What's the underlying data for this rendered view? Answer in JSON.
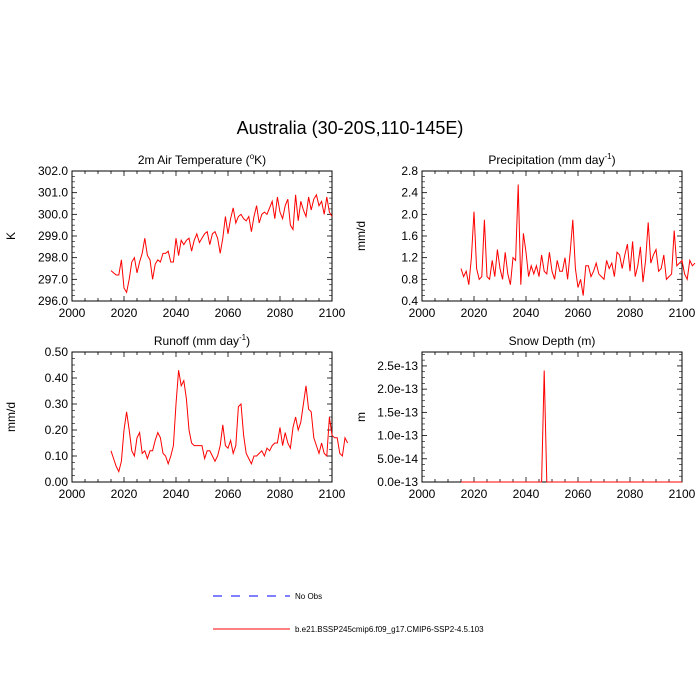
{
  "figure_title": "Australia (30-20S,110-145E)",
  "colors": {
    "model": "#ff0000",
    "obs": "#0000ff",
    "axis": "#000000"
  },
  "legend": [
    {
      "label": "No Obs",
      "style": "dashed",
      "color": "#0000ff"
    },
    {
      "label": "b.e21.BSSP245cmip6.f09_g17.CMIP6-SSP2-4.5.103",
      "style": "solid",
      "color": "#ff0000"
    }
  ],
  "chart_data": [
    {
      "type": "line",
      "title": "2m Air Temperature (",
      "title_sup": "o",
      "title_after": "K)",
      "ylabel": "K",
      "xlim": [
        2000,
        2100
      ],
      "ylim": [
        296.0,
        302.0
      ],
      "xticks": [
        2000,
        2020,
        2040,
        2060,
        2080,
        2100
      ],
      "xtick_labels": [
        "2000",
        "2020",
        "2040",
        "2060",
        "2080",
        "2100"
      ],
      "yticks": [
        296.0,
        297.0,
        298.0,
        299.0,
        300.0,
        301.0,
        302.0
      ],
      "ytick_labels": [
        "296.0",
        "297.0",
        "298.0",
        "299.0",
        "300.0",
        "301.0",
        "302.0"
      ],
      "x_start": 2015,
      "values": [
        297.4,
        297.3,
        297.2,
        297.2,
        297.9,
        296.6,
        296.4,
        297.0,
        297.8,
        298.0,
        297.3,
        297.8,
        298.2,
        298.9,
        298.1,
        297.9,
        297.0,
        297.7,
        297.9,
        297.8,
        298.2,
        298.2,
        298.3,
        297.8,
        297.8,
        298.9,
        298.1,
        298.8,
        298.6,
        298.8,
        298.9,
        298.3,
        298.8,
        299.1,
        298.7,
        298.9,
        299.1,
        299.2,
        298.6,
        299.1,
        299.2,
        298.9,
        298.2,
        298.9,
        299.9,
        299.1,
        299.8,
        300.3,
        299.6,
        299.9,
        300.0,
        299.8,
        299.7,
        299.9,
        299.2,
        299.9,
        300.4,
        299.6,
        300.0,
        300.1,
        300.0,
        300.3,
        300.6,
        299.8,
        300.8,
        300.1,
        299.8,
        300.4,
        300.7,
        299.5,
        299.3,
        300.9,
        299.7,
        300.6,
        300.2,
        299.9,
        300.8,
        300.2,
        300.7,
        300.9,
        300.4,
        300.6,
        300.0,
        300.8,
        300.1,
        299.9
      ],
      "series_name": "b.e21.BSSP245cmip6.f09_g17.CMIP6-SSP2-4.5.103"
    },
    {
      "type": "line",
      "title": "Precipitation (mm day",
      "title_sup": "-1",
      "title_after": ")",
      "ylabel": "mm/d",
      "xlim": [
        2000,
        2100
      ],
      "ylim": [
        0.4,
        2.8
      ],
      "xticks": [
        2000,
        2020,
        2040,
        2060,
        2080,
        2100
      ],
      "xtick_labels": [
        "2000",
        "2020",
        "2040",
        "2060",
        "2080",
        "2100"
      ],
      "yticks": [
        0.4,
        0.8,
        1.2,
        1.6,
        2.0,
        2.4,
        2.8
      ],
      "ytick_labels": [
        "0.4",
        "0.8",
        "1.2",
        "1.6",
        "2.0",
        "2.4",
        "2.8"
      ],
      "x_start": 2015,
      "values": [
        1.0,
        0.85,
        0.95,
        0.7,
        1.2,
        2.05,
        1.0,
        0.8,
        0.85,
        1.9,
        0.85,
        0.8,
        1.15,
        0.85,
        1.35,
        1.0,
        0.8,
        1.3,
        0.9,
        0.7,
        1.2,
        1.15,
        2.55,
        0.7,
        1.65,
        1.3,
        0.85,
        1.05,
        0.9,
        1.05,
        0.85,
        1.25,
        0.95,
        0.9,
        1.3,
        0.95,
        0.8,
        1.15,
        0.95,
        0.95,
        1.2,
        0.8,
        1.3,
        1.9,
        1.0,
        0.65,
        0.8,
        0.5,
        1.05,
        1.05,
        0.85,
        0.95,
        1.1,
        0.9,
        0.85,
        0.8,
        1.15,
        1.0,
        1.1,
        0.85,
        1.3,
        1.25,
        1.0,
        1.25,
        1.45,
        0.95,
        1.5,
        0.85,
        1.05,
        1.4,
        0.75,
        1.15,
        1.85,
        1.1,
        1.25,
        1.35,
        0.95,
        1.0,
        1.25,
        0.8,
        0.85,
        0.9,
        1.7,
        1.05,
        1.1,
        1.15,
        0.9,
        0.8,
        1.15,
        1.05,
        1.1
      ],
      "series_name": "b.e21.BSSP245cmip6.f09_g17.CMIP6-SSP2-4.5.103"
    },
    {
      "type": "line",
      "title": "Runoff (mm day",
      "title_sup": "-1",
      "title_after": ")",
      "ylabel": "mm/d",
      "xlim": [
        2000,
        2100
      ],
      "ylim": [
        0.0,
        0.5
      ],
      "xticks": [
        2000,
        2020,
        2040,
        2060,
        2080,
        2100
      ],
      "xtick_labels": [
        "2000",
        "2020",
        "2040",
        "2060",
        "2080",
        "2100"
      ],
      "yticks": [
        0.0,
        0.1,
        0.2,
        0.3,
        0.4,
        0.5
      ],
      "ytick_labels": [
        "0.00",
        "0.10",
        "0.20",
        "0.30",
        "0.40",
        "0.50"
      ],
      "x_start": 2015,
      "values": [
        0.12,
        0.09,
        0.06,
        0.04,
        0.08,
        0.2,
        0.27,
        0.2,
        0.12,
        0.1,
        0.17,
        0.19,
        0.11,
        0.12,
        0.09,
        0.12,
        0.12,
        0.16,
        0.19,
        0.17,
        0.11,
        0.1,
        0.07,
        0.1,
        0.14,
        0.3,
        0.43,
        0.37,
        0.39,
        0.32,
        0.2,
        0.15,
        0.14,
        0.14,
        0.14,
        0.14,
        0.09,
        0.12,
        0.12,
        0.1,
        0.08,
        0.1,
        0.14,
        0.22,
        0.14,
        0.13,
        0.16,
        0.11,
        0.14,
        0.29,
        0.3,
        0.18,
        0.11,
        0.09,
        0.07,
        0.1,
        0.1,
        0.11,
        0.12,
        0.1,
        0.13,
        0.12,
        0.14,
        0.15,
        0.15,
        0.21,
        0.14,
        0.19,
        0.15,
        0.13,
        0.21,
        0.25,
        0.2,
        0.23,
        0.3,
        0.37,
        0.28,
        0.27,
        0.17,
        0.14,
        0.11,
        0.15,
        0.11,
        0.1,
        0.25,
        0.18,
        0.17,
        0.17,
        0.11,
        0.1,
        0.17,
        0.15
      ],
      "series_name": "b.e21.BSSP245cmip6.f09_g17.CMIP6-SSP2-4.5.103"
    },
    {
      "type": "line",
      "title": "Snow Depth (m)",
      "title_sup": "",
      "title_after": "",
      "ylabel": "m",
      "xlim": [
        2000,
        2100
      ],
      "ylim": [
        0.0,
        2.8e-13
      ],
      "xticks": [
        2000,
        2020,
        2040,
        2060,
        2080,
        2100
      ],
      "xtick_labels": [
        "2000",
        "2020",
        "2040",
        "2060",
        "2080",
        "2100"
      ],
      "yticks": [
        0.0,
        5e-14,
        1e-13,
        1.5e-13,
        2e-13,
        2.5e-13
      ],
      "ytick_labels": [
        "0.0e-13",
        "5.0e-14",
        "1.0e-13",
        "1.5e-13",
        "2.0e-13",
        "2.5e-13"
      ],
      "x_start": 2015,
      "values": [
        0,
        0,
        0,
        0,
        0,
        0,
        0,
        0,
        0,
        0,
        0,
        0,
        0,
        0,
        0,
        0,
        0,
        0,
        0,
        0,
        0,
        0,
        0,
        0,
        0,
        0,
        0,
        0,
        0,
        0,
        0,
        0,
        2.4e-13,
        0,
        0,
        0,
        0,
        0,
        0,
        0,
        0,
        0,
        0,
        0,
        0,
        0,
        0,
        0,
        0,
        0,
        0,
        0,
        0,
        0,
        0,
        0,
        0,
        0,
        0,
        0,
        0,
        0,
        0,
        0,
        0,
        0,
        0,
        0,
        0,
        0,
        0,
        0,
        0,
        0,
        0,
        0,
        0,
        0,
        0,
        0,
        0,
        0,
        0,
        0,
        0,
        0
      ],
      "series_name": "b.e21.BSSP245cmip6.f09_g17.CMIP6-SSP2-4.5.103"
    }
  ]
}
